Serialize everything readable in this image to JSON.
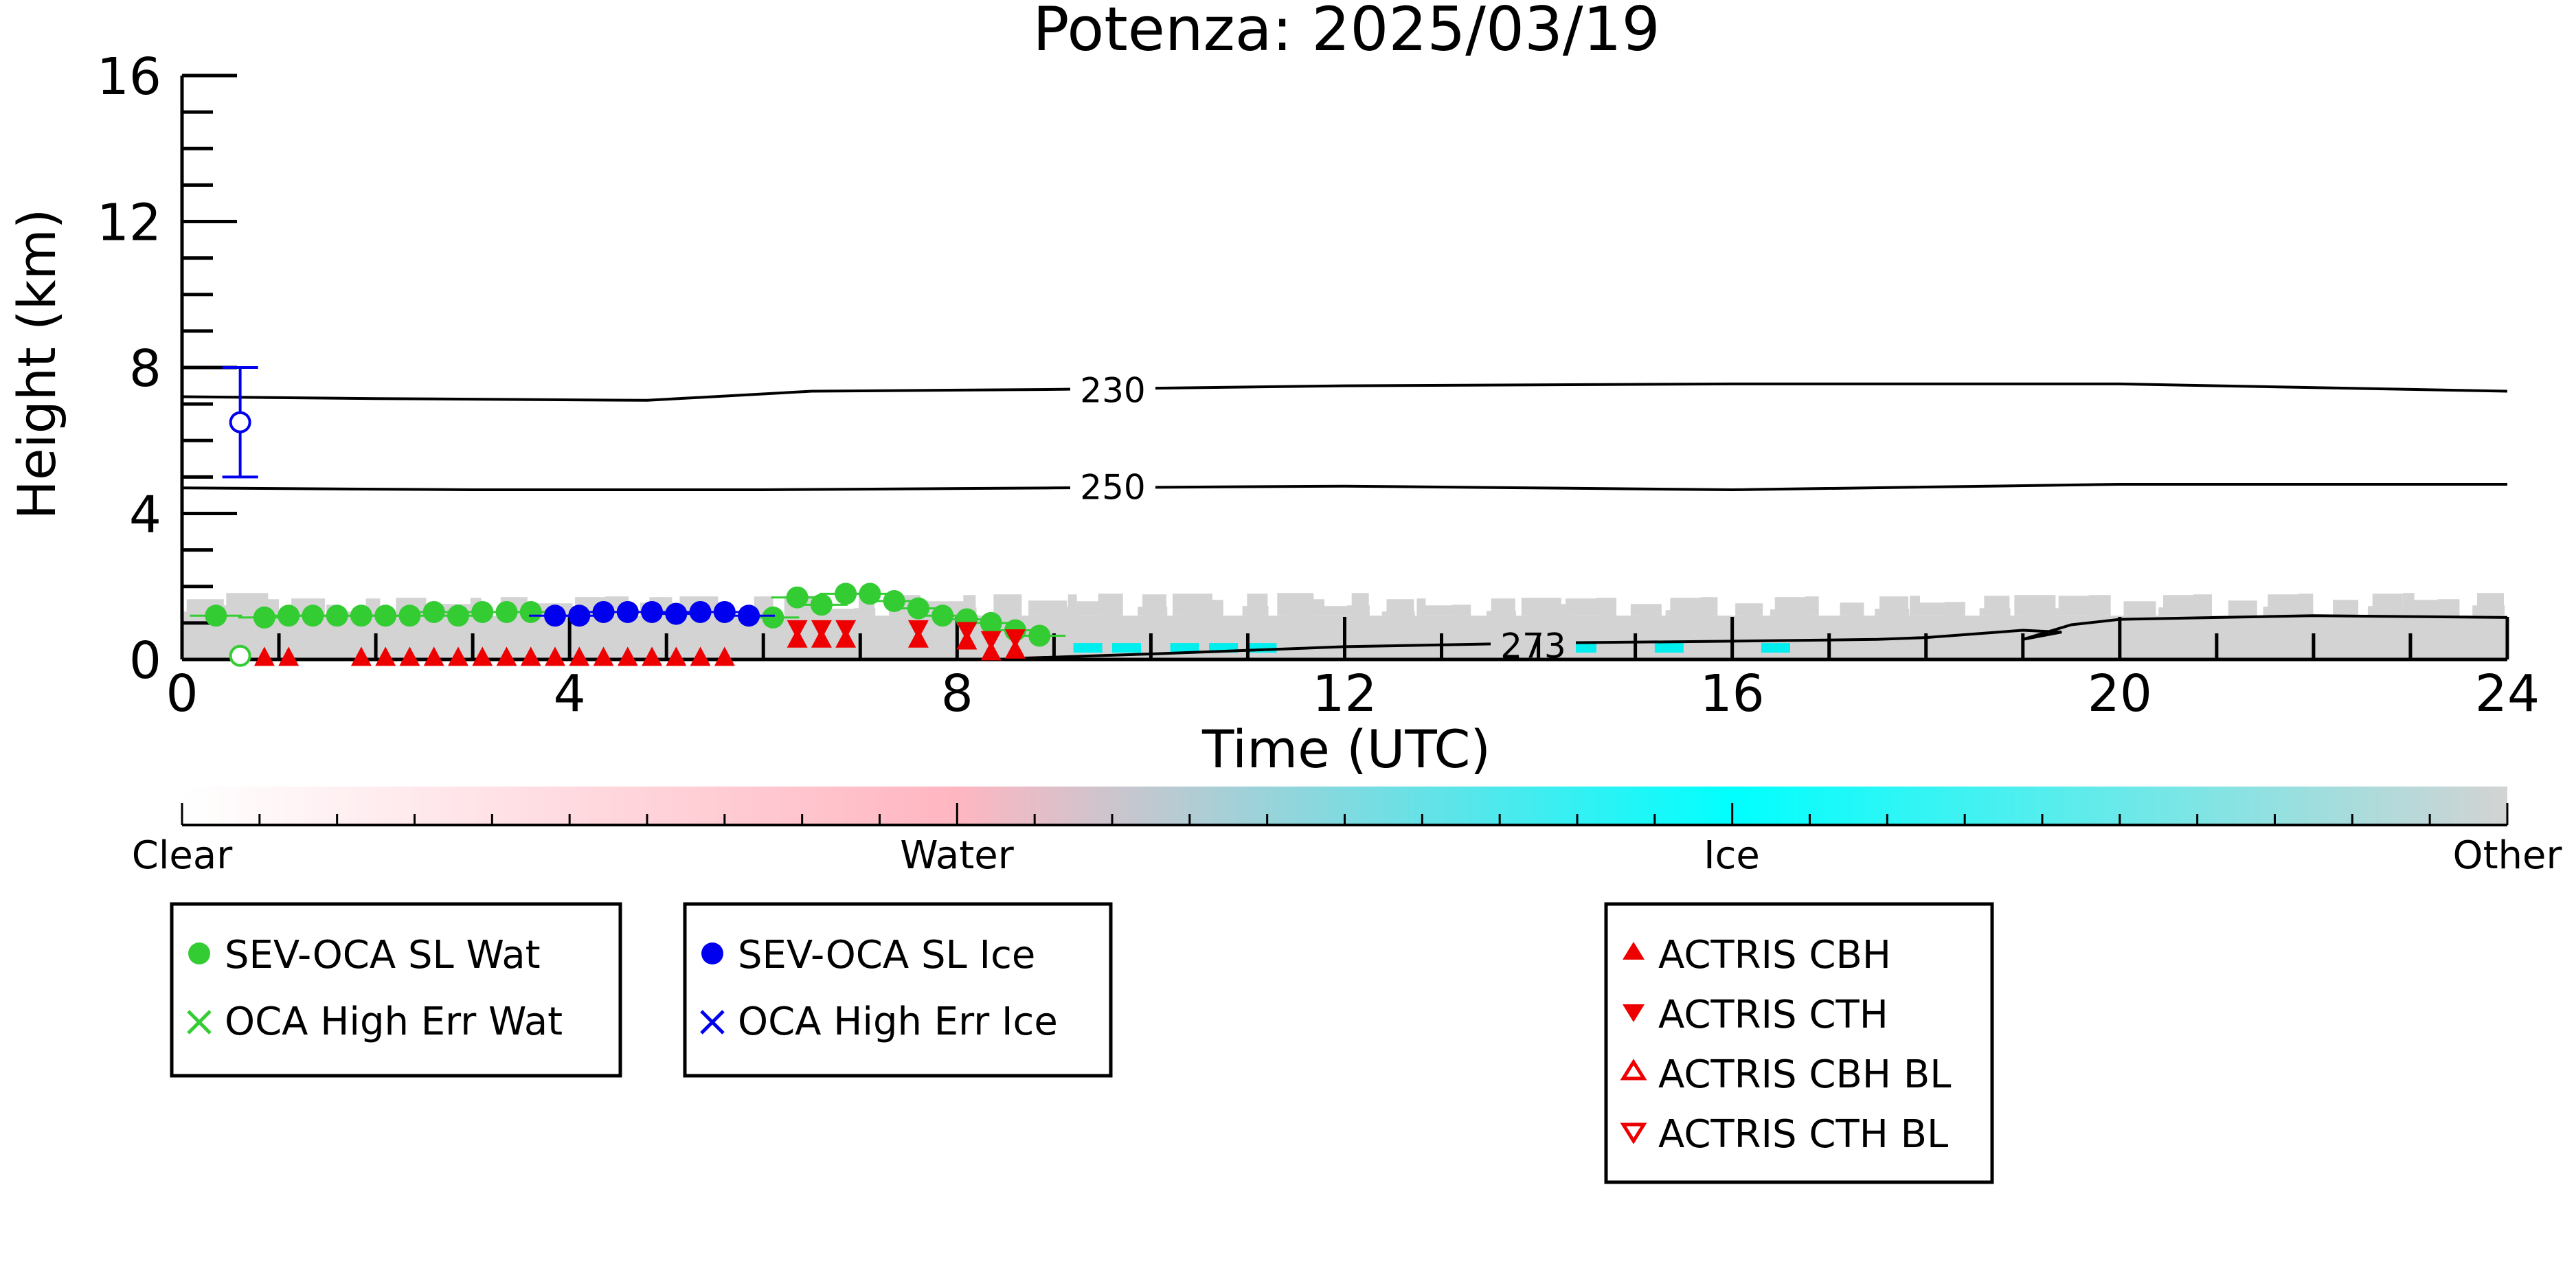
{
  "chart_data": {
    "type": "scatter",
    "title": "Potenza: 2025/03/19",
    "xlabel": "Time (UTC)",
    "ylabel": "Height (km)",
    "xlim": [
      0,
      24
    ],
    "ylim": [
      0,
      16
    ],
    "x_ticks": [
      0,
      4,
      8,
      12,
      16,
      20,
      24
    ],
    "y_ticks": [
      0,
      4,
      8,
      12,
      16
    ],
    "temperature_contours": [
      {
        "label": "230",
        "x": [
          0,
          2,
          4.8,
          6.5,
          9,
          12,
          16,
          20,
          24
        ],
        "y": [
          7.2,
          7.15,
          7.1,
          7.35,
          7.4,
          7.5,
          7.55,
          7.55,
          7.35
        ]
      },
      {
        "label": "250",
        "x": [
          0,
          3,
          6,
          9,
          12,
          16,
          20,
          24
        ],
        "y": [
          4.7,
          4.65,
          4.65,
          4.7,
          4.75,
          4.65,
          4.8,
          4.8
        ]
      },
      {
        "label": "273",
        "x": [
          8.5,
          10,
          12,
          14,
          16,
          17.5,
          18,
          19,
          19.4,
          19.0,
          19.5,
          20,
          22,
          24
        ],
        "y": [
          0.02,
          0.15,
          0.35,
          0.45,
          0.5,
          0.55,
          0.6,
          0.8,
          0.75,
          0.55,
          0.95,
          1.1,
          1.2,
          1.15
        ]
      }
    ],
    "series": [
      {
        "name": "SEV-OCA SL Wat",
        "color": "#33cc33",
        "marker": "circle-filled",
        "x": [
          0.35,
          0.85,
          1.1,
          1.35,
          1.6,
          1.85,
          2.1,
          2.35,
          2.6,
          2.85,
          3.1,
          3.35,
          3.6,
          6.1,
          6.35,
          6.6,
          6.85,
          7.1,
          7.35,
          7.6,
          7.85,
          8.1,
          8.35,
          8.6,
          8.85
        ],
        "y": [
          1.2,
          1.15,
          1.2,
          1.2,
          1.2,
          1.2,
          1.2,
          1.2,
          1.3,
          1.2,
          1.3,
          1.3,
          1.3,
          1.15,
          1.7,
          1.5,
          1.8,
          1.8,
          1.6,
          1.4,
          1.2,
          1.1,
          1.0,
          0.8,
          0.65
        ]
      },
      {
        "name": "SEV-OCA SL Ice",
        "color": "#0000ee",
        "marker": "circle-filled",
        "x": [
          3.85,
          4.1,
          4.35,
          4.6,
          4.85,
          5.1,
          5.35,
          5.6,
          5.85
        ],
        "y": [
          1.2,
          1.2,
          1.3,
          1.3,
          1.3,
          1.25,
          1.3,
          1.3,
          1.2
        ]
      },
      {
        "name": "OCA High Err Wat",
        "color": "#33cc33",
        "marker": "x",
        "x": [],
        "y": []
      },
      {
        "name": "OCA High Err Ice",
        "color": "#0000ee",
        "marker": "x",
        "x": [],
        "y": []
      },
      {
        "name": "ACTRIS CBH",
        "color": "#ee0000",
        "marker": "triangle-up-filled",
        "x": [
          0.85,
          1.1,
          1.85,
          2.1,
          2.35,
          2.6,
          2.85,
          3.1,
          3.35,
          3.6,
          3.85,
          4.1,
          4.35,
          4.6,
          4.85,
          5.1,
          5.35,
          5.6,
          6.35,
          6.6,
          6.85,
          7.6,
          8.1,
          8.35,
          8.6
        ],
        "y": [
          0.05,
          0.05,
          0.05,
          0.05,
          0.05,
          0.05,
          0.05,
          0.05,
          0.05,
          0.05,
          0.05,
          0.05,
          0.05,
          0.05,
          0.05,
          0.05,
          0.05,
          0.05,
          0.55,
          0.55,
          0.55,
          0.55,
          0.5,
          0.2,
          0.25
        ]
      },
      {
        "name": "ACTRIS CTH",
        "color": "#ee0000",
        "marker": "triangle-down-filled",
        "x": [
          6.35,
          6.6,
          6.85,
          7.6,
          8.1,
          8.35,
          8.6
        ],
        "y": [
          0.85,
          0.85,
          0.85,
          0.85,
          0.8,
          0.55,
          0.6
        ]
      },
      {
        "name": "ACTRIS CBH BL",
        "color": "#ee0000",
        "marker": "triangle-up-open",
        "x": [],
        "y": []
      },
      {
        "name": "ACTRIS CTH BL",
        "color": "#ee0000",
        "marker": "triangle-down-open",
        "x": [],
        "y": []
      },
      {
        "name": "",
        "color": "#0000ee",
        "marker": "circle-open",
        "x": [
          0.6
        ],
        "y": [
          6.5
        ],
        "yerr_low": [
          5.0
        ],
        "yerr_high": [
          8.0
        ]
      },
      {
        "name": "",
        "color": "#33cc33",
        "marker": "circle-open",
        "x": [
          0.6
        ],
        "y": [
          0.1
        ]
      }
    ],
    "cloud_mask": {
      "x_range": [
        0,
        24
      ],
      "top_km": 1.2,
      "color": "#d3d3d3",
      "ice_patches_x": [
        9.2,
        9.6,
        10.2,
        10.6,
        11.0,
        14.3,
        15.2,
        16.3
      ],
      "ice_color": "#00eeee"
    },
    "colorbar": {
      "labels": [
        "Clear",
        "Water",
        "Ice",
        "Other"
      ],
      "positions": [
        0,
        1,
        2,
        3
      ],
      "colors": [
        "#ffffff",
        "#ffb6c1",
        "#00ffff",
        "#d3d3d3"
      ]
    },
    "legend_groups": [
      [
        "SEV-OCA SL Wat",
        "OCA High Err Wat"
      ],
      [
        "SEV-OCA SL Ice",
        "OCA High Err Ice"
      ],
      [
        "ACTRIS CBH",
        "ACTRIS CTH",
        "ACTRIS CBH BL",
        "ACTRIS CTH BL"
      ]
    ],
    "grid": false
  }
}
